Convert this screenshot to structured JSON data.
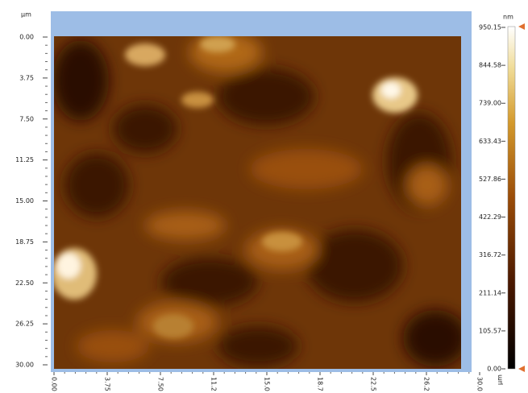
{
  "y_axis": {
    "unit": "µm",
    "ticks": [
      "0.00",
      "3.75",
      "7.50",
      "11.25",
      "15.00",
      "18.75",
      "22.50",
      "26.25",
      "30.00"
    ]
  },
  "x_axis": {
    "unit": "µm",
    "ticks": [
      "0.00",
      "3.75",
      "7.50",
      "11.2",
      "15.0",
      "18.7",
      "22.5",
      "26.2",
      "30.0"
    ]
  },
  "colorbar": {
    "unit": "nm",
    "ticks": [
      "950.15",
      "844.58",
      "739.00",
      "633.43",
      "527.86",
      "422.29",
      "316.72",
      "211.14",
      "105.57",
      "0.00"
    ]
  }
}
